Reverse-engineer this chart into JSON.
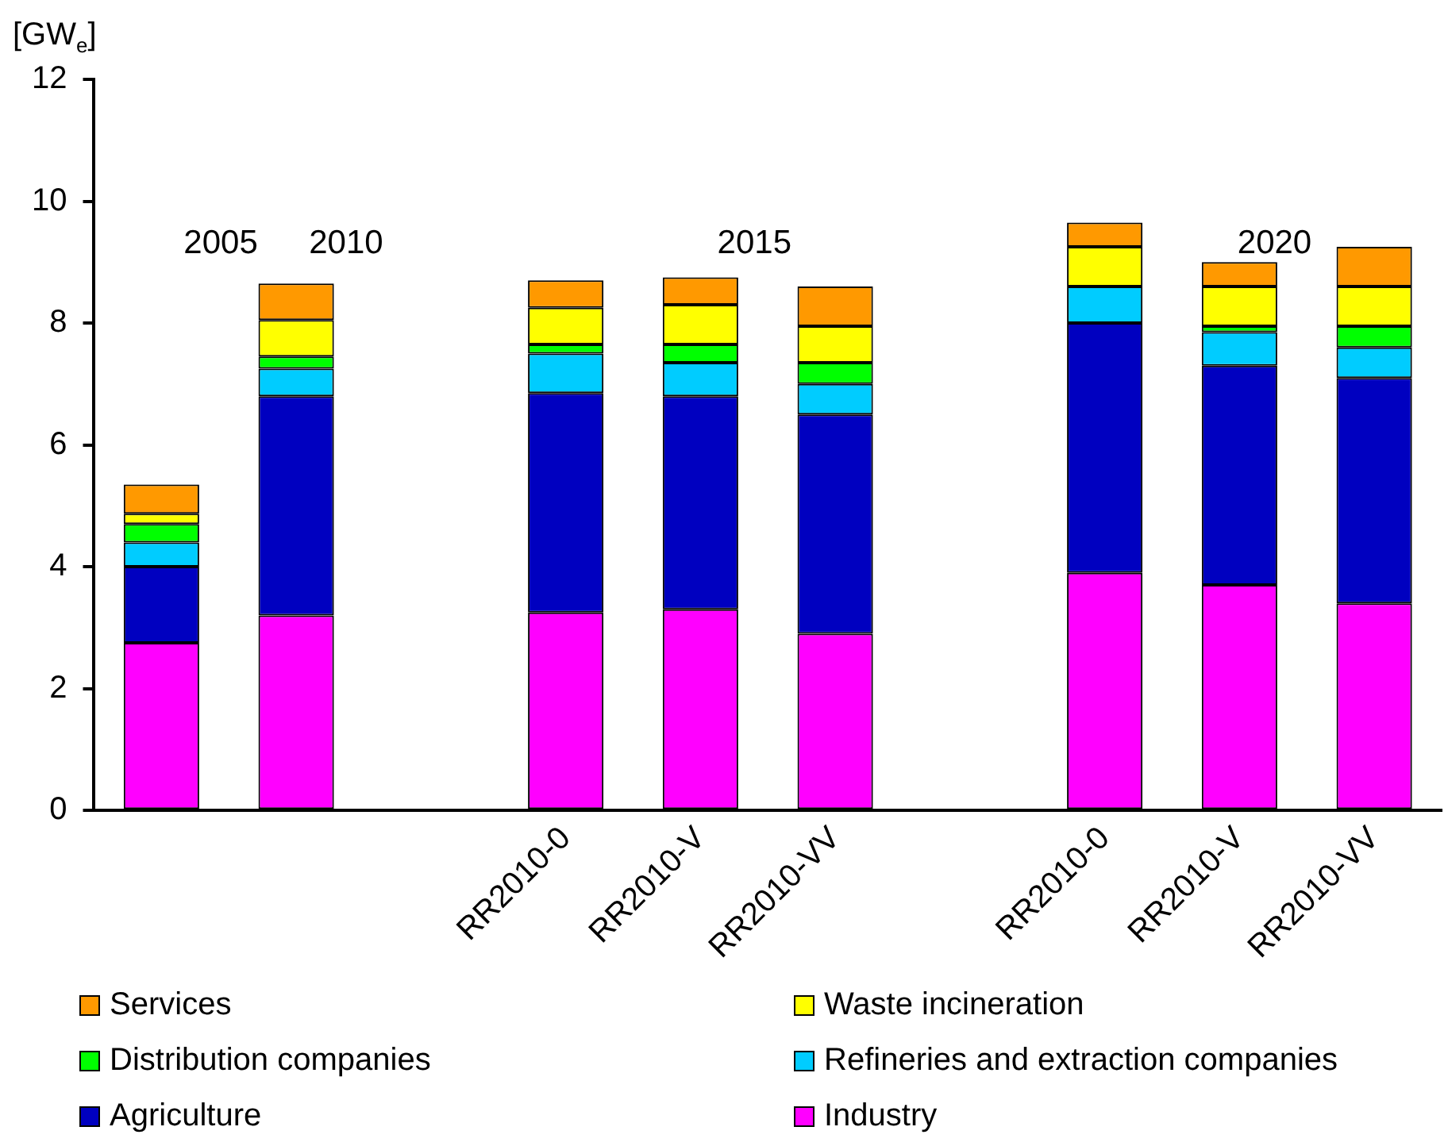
{
  "chart_data": {
    "type": "bar",
    "stacked": true,
    "ylabel": "[GW$_{e}$]",
    "categories": [
      null,
      null,
      null,
      "RR2010-0",
      "RR2010-V",
      "RR2010-VV",
      null,
      "RR2010-0",
      "RR2010-V",
      "RR2010-VV"
    ],
    "series": [
      {
        "name": "Industry",
        "color": "#ff00ff",
        "values": [
          2.75,
          3.2,
          null,
          3.25,
          3.3,
          2.9,
          null,
          3.9,
          3.7,
          3.4
        ]
      },
      {
        "name": "Agriculture",
        "color": "#0000c0",
        "values": [
          1.25,
          3.6,
          null,
          3.6,
          3.5,
          3.6,
          null,
          4.1,
          3.6,
          3.7
        ]
      },
      {
        "name": "Refineries and extraction companies",
        "color": "#00ccff",
        "values": [
          0.4,
          0.45,
          null,
          0.65,
          0.55,
          0.5,
          null,
          0.6,
          0.55,
          0.5
        ]
      },
      {
        "name": "Distribution companies",
        "color": "#00ff00",
        "values": [
          0.3,
          0.2,
          null,
          0.15,
          0.3,
          0.35,
          null,
          0,
          0.1,
          0.35
        ]
      },
      {
        "name": "Waste incineration",
        "color": "#ffff00",
        "values": [
          0.17,
          0.6,
          null,
          0.6,
          0.65,
          0.6,
          null,
          0.65,
          0.65,
          0.65
        ]
      },
      {
        "name": "Services",
        "color": "#ff9900",
        "values": [
          0.48,
          0.6,
          null,
          0.45,
          0.45,
          0.65,
          null,
          0.4,
          0.4,
          0.65
        ]
      }
    ],
    "annotations": [
      "2005",
      "2010",
      "2015",
      "2020"
    ],
    "ylim": [
      0,
      12
    ],
    "yticks": [
      0,
      2,
      4,
      6,
      8,
      10,
      12
    ],
    "grid": false,
    "legend": "bottom"
  }
}
